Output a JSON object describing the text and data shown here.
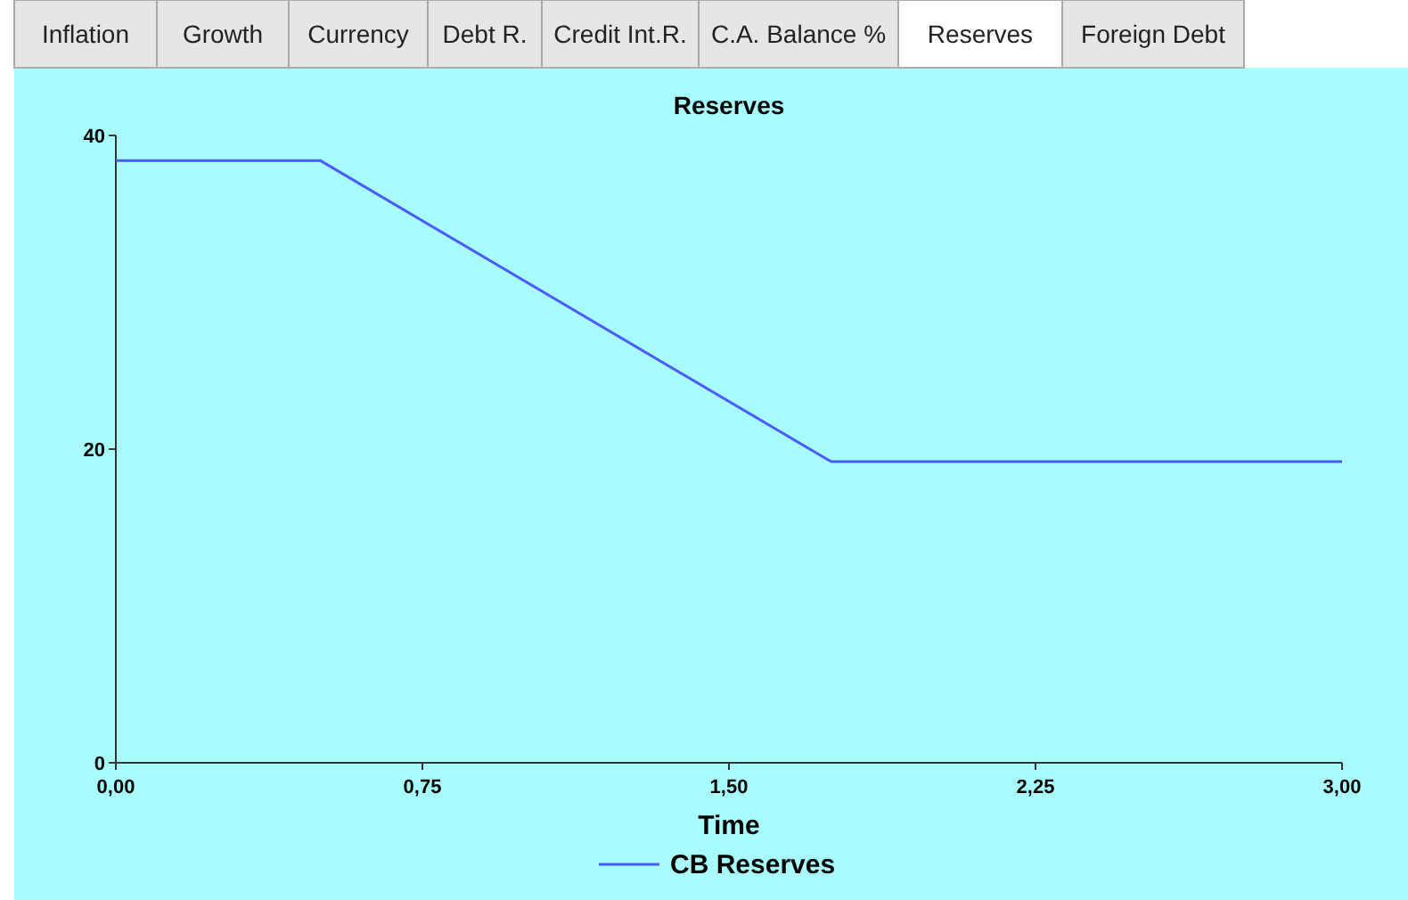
{
  "chart_data": {
    "type": "line",
    "title": "Reserves",
    "xlabel": "Time",
    "annotations": [
      "Inflation",
      "Growth",
      "Currency",
      "Debt R.",
      "Credit Int.R.",
      "C.A. Balance %",
      "Reserves",
      "Foreign Debt"
    ],
    "x": [
      0,
      0.5,
      1.75,
      3
    ],
    "series": [
      {
        "name": "CB Reserves",
        "color": "#4a5cff",
        "values": [
          38.4,
          38.4,
          19.2,
          19.2
        ]
      }
    ],
    "xlim": [
      0,
      3
    ],
    "xticks": [
      {
        "value": 0,
        "label": "0,00"
      },
      {
        "value": 0.75,
        "label": "0,75"
      },
      {
        "value": 1.5,
        "label": "1,50"
      },
      {
        "value": 2.25,
        "label": "2,25"
      },
      {
        "value": 3,
        "label": "3,00"
      }
    ],
    "ylim": [
      0,
      40
    ],
    "yticks": [
      0,
      20,
      40
    ],
    "grid": false,
    "legend": "bottom",
    "marker": "none",
    "line_style": "solid"
  }
}
